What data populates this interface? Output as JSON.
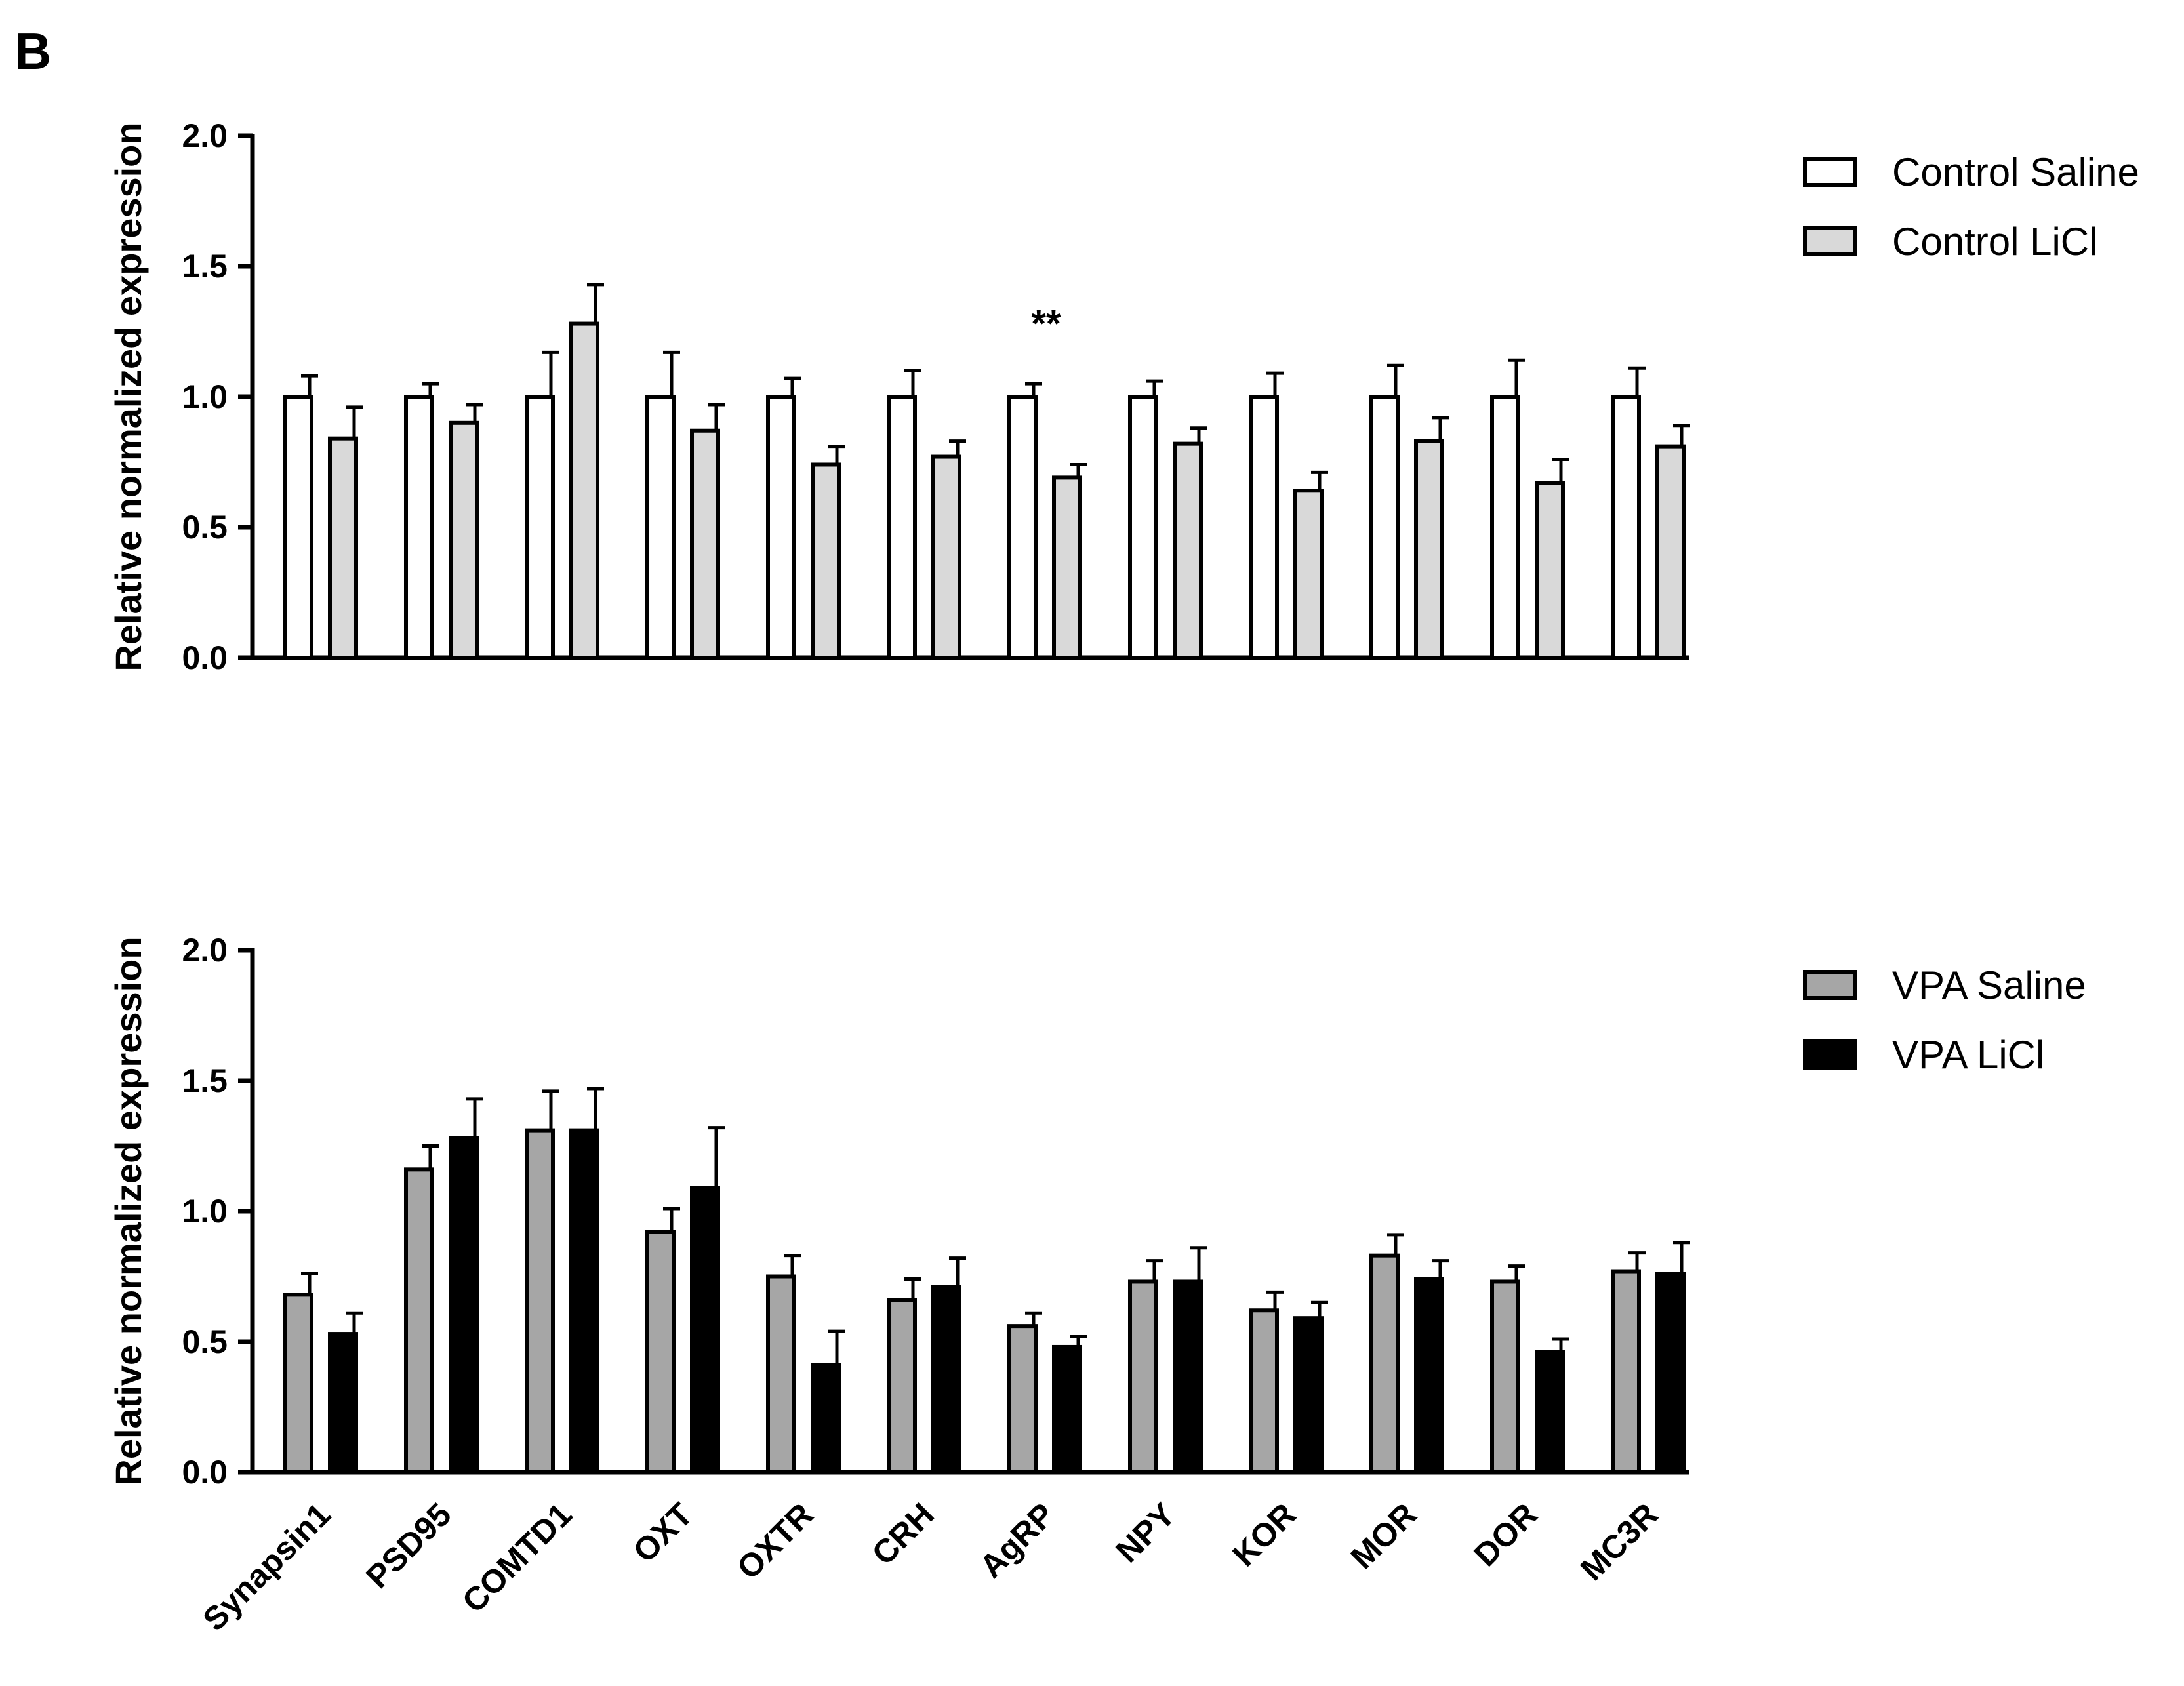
{
  "figure": {
    "panel_letter": "B"
  },
  "chart_data": [
    {
      "type": "bar",
      "ylabel": "Relative normalized expression",
      "xlabel": "",
      "ylim": [
        0,
        2.0
      ],
      "yticks": [
        0.0,
        0.5,
        1.0,
        1.5,
        2.0
      ],
      "ytick_labels": [
        "0.0",
        "0.5",
        "1.0",
        "1.5",
        "2.0"
      ],
      "categories": [
        "Synapsin1",
        "PSD95",
        "COMTD1",
        "OXT",
        "OXTR",
        "CRH",
        "AgRP",
        "NPY",
        "KOR",
        "MOR",
        "DOR",
        "MC3R"
      ],
      "show_category_labels": false,
      "legend_position": "top-right",
      "series": [
        {
          "name": "Control Saline",
          "color": "#ffffff",
          "values": [
            1.0,
            1.0,
            1.0,
            1.0,
            1.0,
            1.0,
            1.0,
            1.0,
            1.0,
            1.0,
            1.0,
            1.0
          ],
          "errors": [
            0.08,
            0.05,
            0.17,
            0.17,
            0.07,
            0.1,
            0.05,
            0.06,
            0.09,
            0.12,
            0.14,
            0.11
          ]
        },
        {
          "name": "Control LiCl",
          "color": "#d9d9d9",
          "values": [
            0.84,
            0.9,
            1.28,
            0.87,
            0.74,
            0.77,
            0.69,
            0.82,
            0.64,
            0.83,
            0.67,
            0.81
          ],
          "errors": [
            0.12,
            0.07,
            0.15,
            0.1,
            0.07,
            0.06,
            0.05,
            0.06,
            0.07,
            0.09,
            0.09,
            0.08
          ]
        }
      ],
      "annotations": [
        {
          "text": "**",
          "category": "AgRP",
          "y": 1.33
        }
      ]
    },
    {
      "type": "bar",
      "ylabel": "Relative normalized expression",
      "xlabel": "",
      "ylim": [
        0,
        2.0
      ],
      "yticks": [
        0.0,
        0.5,
        1.0,
        1.5,
        2.0
      ],
      "ytick_labels": [
        "0.0",
        "0.5",
        "1.0",
        "1.5",
        "2.0"
      ],
      "categories": [
        "Synapsin1",
        "PSD95",
        "COMTD1",
        "OXT",
        "OXTR",
        "CRH",
        "AgRP",
        "NPY",
        "KOR",
        "MOR",
        "DOR",
        "MC3R"
      ],
      "show_category_labels": true,
      "legend_position": "top-right",
      "series": [
        {
          "name": "VPA Saline",
          "color": "#a6a6a6",
          "values": [
            0.68,
            1.16,
            1.31,
            0.92,
            0.75,
            0.66,
            0.56,
            0.73,
            0.62,
            0.83,
            0.73,
            0.77
          ],
          "errors": [
            0.08,
            0.09,
            0.15,
            0.09,
            0.08,
            0.08,
            0.05,
            0.08,
            0.07,
            0.08,
            0.06,
            0.07
          ]
        },
        {
          "name": "VPA LiCl",
          "color": "#000000",
          "values": [
            0.53,
            1.28,
            1.31,
            1.09,
            0.41,
            0.71,
            0.48,
            0.73,
            0.59,
            0.74,
            0.46,
            0.76
          ],
          "errors": [
            0.08,
            0.15,
            0.16,
            0.23,
            0.13,
            0.11,
            0.04,
            0.13,
            0.06,
            0.07,
            0.05,
            0.12
          ]
        }
      ],
      "annotations": []
    }
  ]
}
